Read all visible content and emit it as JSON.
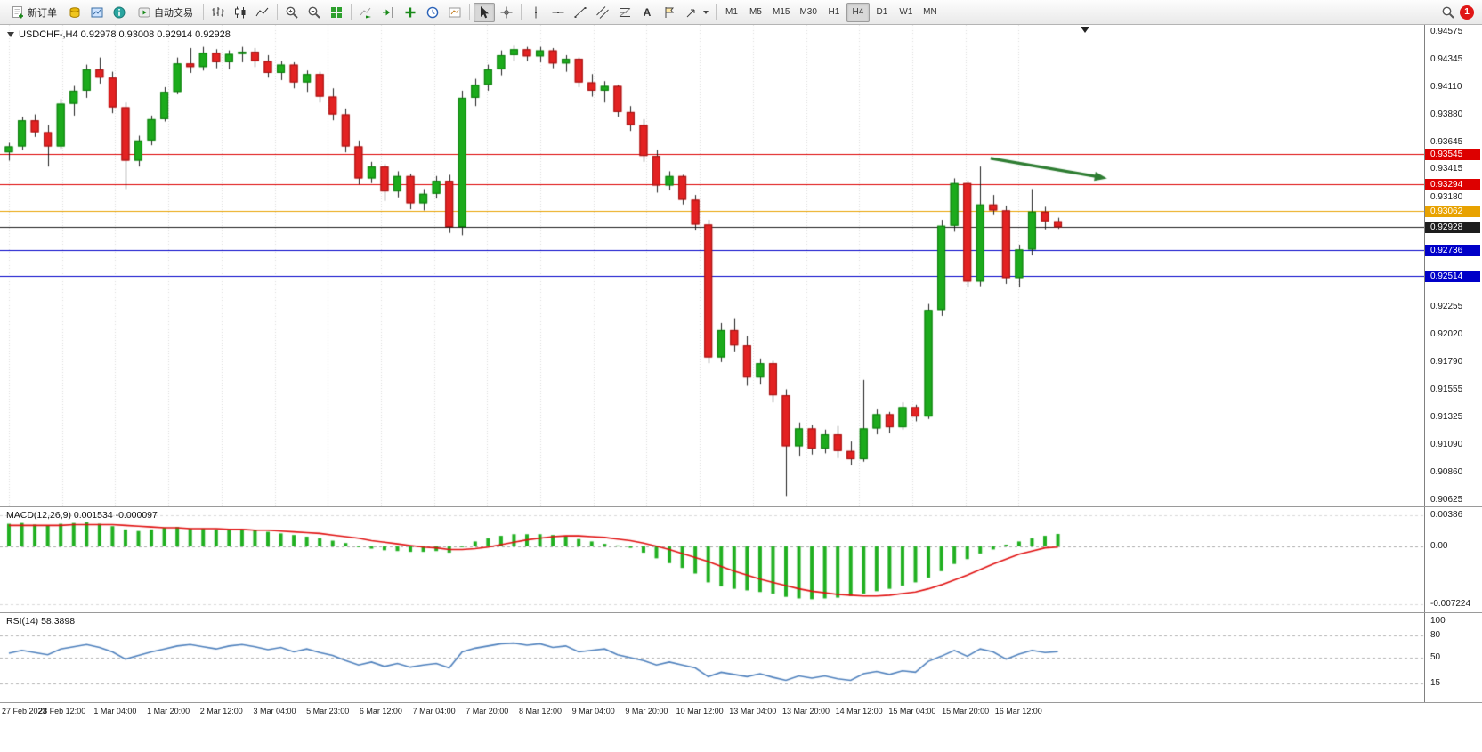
{
  "toolbar": {
    "new_order_label": "新订单",
    "algo_trading_label": "自动交易",
    "text_tool_label": "A",
    "timeframes": [
      "M1",
      "M5",
      "M15",
      "M30",
      "H1",
      "H4",
      "D1",
      "W1",
      "MN"
    ],
    "active_timeframe": "H4",
    "notification_count": "1"
  },
  "chart": {
    "symbol_header": "USDCHF-,H4 0.92978 0.93008 0.92914 0.92928"
  },
  "price_axis": {
    "labels": [
      "0.94575",
      "0.94345",
      "0.94110",
      "0.93880",
      "0.93645",
      "0.93415",
      "0.93180",
      "0.92255",
      "0.92020",
      "0.91790",
      "0.91555",
      "0.91325",
      "0.91090",
      "0.90860",
      "0.90625"
    ]
  },
  "macd_panel": {
    "title": "MACD(12,26,9) 0.001534 -0.000097",
    "axis_labels": [
      {
        "text": "0.00386",
        "value": 0.00386
      },
      {
        "text": "0.00",
        "value": 0
      },
      {
        "text": "-0.007224",
        "value": -0.007224
      }
    ]
  },
  "rsi_panel": {
    "title": "RSI(14) 58.3898",
    "axis_labels": [
      {
        "text": "100",
        "value": 100
      },
      {
        "text": "80",
        "value": 80
      },
      {
        "text": "50",
        "value": 50
      },
      {
        "text": "15",
        "value": 15
      }
    ]
  },
  "time_axis": {
    "labels": [
      "27 Feb 2023",
      "28 Feb 12:00",
      "1 Mar 04:00",
      "1 Mar 20:00",
      "2 Mar 12:00",
      "3 Mar 04:00",
      "5 Mar 23:00",
      "6 Mar 12:00",
      "7 Mar 04:00",
      "7 Mar 20:00",
      "8 Mar 12:00",
      "9 Mar 04:00",
      "9 Mar 20:00",
      "10 Mar 12:00",
      "13 Mar 04:00",
      "13 Mar 20:00",
      "14 Mar 12:00",
      "15 Mar 04:00",
      "15 Mar 20:00",
      "16 Mar 12:00"
    ]
  },
  "chart_data": {
    "type": "candlestick",
    "symbol": "USDCHF-",
    "timeframe": "H4",
    "current_ohlc": {
      "open": 0.92978,
      "high": 0.93008,
      "low": 0.92914,
      "close": 0.92928
    },
    "ylim": [
      0.90625,
      0.94575
    ],
    "candles": [
      [
        0.9356,
        0.9364,
        0.9349,
        0.9361
      ],
      [
        0.9361,
        0.9386,
        0.9358,
        0.9383
      ],
      [
        0.9383,
        0.9388,
        0.9369,
        0.9373
      ],
      [
        0.9373,
        0.9379,
        0.9344,
        0.9361
      ],
      [
        0.9361,
        0.9401,
        0.9359,
        0.9397
      ],
      [
        0.9397,
        0.9412,
        0.9387,
        0.9408
      ],
      [
        0.9408,
        0.943,
        0.9402,
        0.9426
      ],
      [
        0.9426,
        0.9436,
        0.9414,
        0.9419
      ],
      [
        0.9419,
        0.9424,
        0.9389,
        0.9394
      ],
      [
        0.9394,
        0.9398,
        0.9325,
        0.9349
      ],
      [
        0.9349,
        0.937,
        0.9344,
        0.9366
      ],
      [
        0.9366,
        0.9387,
        0.9362,
        0.9384
      ],
      [
        0.9384,
        0.9411,
        0.9382,
        0.9407
      ],
      [
        0.9407,
        0.9436,
        0.9405,
        0.9431
      ],
      [
        0.9431,
        0.9444,
        0.9423,
        0.9428
      ],
      [
        0.9428,
        0.9445,
        0.9425,
        0.944
      ],
      [
        0.944,
        0.9443,
        0.9427,
        0.9432
      ],
      [
        0.9432,
        0.9442,
        0.9426,
        0.9439
      ],
      [
        0.9439,
        0.9445,
        0.9432,
        0.9441
      ],
      [
        0.9441,
        0.9444,
        0.9428,
        0.9433
      ],
      [
        0.9433,
        0.9438,
        0.9419,
        0.9423
      ],
      [
        0.9423,
        0.9433,
        0.9417,
        0.943
      ],
      [
        0.943,
        0.9432,
        0.941,
        0.9415
      ],
      [
        0.9415,
        0.9425,
        0.9407,
        0.9422
      ],
      [
        0.9422,
        0.9424,
        0.9398,
        0.9403
      ],
      [
        0.9403,
        0.941,
        0.9383,
        0.9388
      ],
      [
        0.9388,
        0.9393,
        0.9356,
        0.9361
      ],
      [
        0.9361,
        0.9366,
        0.9329,
        0.9334
      ],
      [
        0.9334,
        0.9348,
        0.933,
        0.9344
      ],
      [
        0.9344,
        0.9346,
        0.9315,
        0.9323
      ],
      [
        0.9323,
        0.934,
        0.9318,
        0.9336
      ],
      [
        0.9336,
        0.9338,
        0.9308,
        0.9313
      ],
      [
        0.9313,
        0.9325,
        0.9307,
        0.9321
      ],
      [
        0.9321,
        0.9336,
        0.9317,
        0.9332
      ],
      [
        0.9332,
        0.9337,
        0.9288,
        0.9293
      ],
      [
        0.9293,
        0.9408,
        0.9286,
        0.9402
      ],
      [
        0.9402,
        0.9418,
        0.9395,
        0.9413
      ],
      [
        0.9413,
        0.943,
        0.9408,
        0.9426
      ],
      [
        0.9426,
        0.9442,
        0.9421,
        0.9438
      ],
      [
        0.9438,
        0.9446,
        0.9433,
        0.9443
      ],
      [
        0.9443,
        0.9445,
        0.9433,
        0.9437
      ],
      [
        0.9437,
        0.9445,
        0.9432,
        0.9442
      ],
      [
        0.9442,
        0.9444,
        0.9427,
        0.9431
      ],
      [
        0.9431,
        0.9438,
        0.9424,
        0.9435
      ],
      [
        0.9435,
        0.9436,
        0.9411,
        0.9415
      ],
      [
        0.9415,
        0.9422,
        0.9403,
        0.9408
      ],
      [
        0.9408,
        0.9416,
        0.9398,
        0.9412
      ],
      [
        0.9412,
        0.9413,
        0.9386,
        0.939
      ],
      [
        0.939,
        0.9395,
        0.9374,
        0.9379
      ],
      [
        0.9379,
        0.9384,
        0.9348,
        0.9353
      ],
      [
        0.9353,
        0.9358,
        0.9322,
        0.9328
      ],
      [
        0.9328,
        0.934,
        0.9324,
        0.9336
      ],
      [
        0.9336,
        0.9337,
        0.9312,
        0.9316
      ],
      [
        0.9316,
        0.932,
        0.929,
        0.9295
      ],
      [
        0.9295,
        0.9299,
        0.9178,
        0.9183
      ],
      [
        0.9183,
        0.9212,
        0.9179,
        0.9206
      ],
      [
        0.9206,
        0.9216,
        0.9188,
        0.9193
      ],
      [
        0.9193,
        0.9201,
        0.9159,
        0.9166
      ],
      [
        0.9166,
        0.9182,
        0.916,
        0.9178
      ],
      [
        0.9178,
        0.918,
        0.9145,
        0.9151
      ],
      [
        0.9151,
        0.9156,
        0.9066,
        0.9108
      ],
      [
        0.9108,
        0.9128,
        0.91,
        0.9123
      ],
      [
        0.9123,
        0.9126,
        0.9101,
        0.9106
      ],
      [
        0.9106,
        0.9122,
        0.9102,
        0.9118
      ],
      [
        0.9118,
        0.9125,
        0.9098,
        0.9104
      ],
      [
        0.9104,
        0.9112,
        0.9092,
        0.9097
      ],
      [
        0.9097,
        0.9164,
        0.9095,
        0.9123
      ],
      [
        0.9123,
        0.9139,
        0.9118,
        0.9135
      ],
      [
        0.9135,
        0.9137,
        0.9119,
        0.9124
      ],
      [
        0.9124,
        0.9145,
        0.9122,
        0.9141
      ],
      [
        0.9141,
        0.9143,
        0.9129,
        0.9133
      ],
      [
        0.9133,
        0.9228,
        0.9131,
        0.9223
      ],
      [
        0.9223,
        0.9299,
        0.9218,
        0.9294
      ],
      [
        0.9294,
        0.9334,
        0.9289,
        0.933
      ],
      [
        0.933,
        0.9332,
        0.9242,
        0.9247
      ],
      [
        0.9247,
        0.9344,
        0.9243,
        0.9312
      ],
      [
        0.9312,
        0.932,
        0.9303,
        0.9307
      ],
      [
        0.9307,
        0.9311,
        0.9245,
        0.925
      ],
      [
        0.925,
        0.9278,
        0.9242,
        0.9274
      ],
      [
        0.9274,
        0.9325,
        0.9269,
        0.9306
      ],
      [
        0.9306,
        0.931,
        0.9291,
        0.92978
      ],
      [
        0.92978,
        0.93008,
        0.92914,
        0.92928
      ]
    ],
    "bull_color": "#1cab1c",
    "bear_color": "#e32222",
    "levels": [
      {
        "price": 0.93545,
        "label": "0.93545",
        "color": "#dd0000"
      },
      {
        "price": 0.93294,
        "label": "0.93294",
        "color": "#dd0000"
      },
      {
        "price": 0.93062,
        "label": "0.93062",
        "color": "#e8a200"
      },
      {
        "price": 0.92928,
        "label": "0.92928",
        "color": "#1d1d1d"
      },
      {
        "price": 0.92736,
        "label": "0.92736",
        "color": "#0000c8"
      },
      {
        "price": 0.92514,
        "label": "0.92514",
        "color": "#0000c8"
      }
    ],
    "annotation_arrow": {
      "x1_candle": 75.8,
      "y1_price": 0.9351,
      "x2_candle": 84.8,
      "y2_price": 0.9334,
      "color": "#2e7d32"
    },
    "macd": {
      "ylim": [
        -0.007224,
        0.00386
      ],
      "histogram_color": "#21b021",
      "signal_color": "#e01010",
      "histogram": [
        0.0028,
        0.0029,
        0.0027,
        0.0026,
        0.0028,
        0.0029,
        0.003,
        0.0028,
        0.0025,
        0.0021,
        0.0019,
        0.0021,
        0.0023,
        0.0024,
        0.0022,
        0.0022,
        0.0021,
        0.0021,
        0.0021,
        0.002,
        0.0018,
        0.0016,
        0.0014,
        0.0012,
        0.001,
        0.0007,
        0.0004,
        0.0,
        -0.0003,
        -0.0005,
        -0.0006,
        -0.0007,
        -0.0007,
        -0.0006,
        -0.0008,
        0.0,
        0.0006,
        0.001,
        0.0013,
        0.0015,
        0.0015,
        0.0015,
        0.0014,
        0.0012,
        0.0009,
        0.0006,
        0.0003,
        0.0001,
        -0.0002,
        -0.0008,
        -0.0015,
        -0.0021,
        -0.0027,
        -0.0034,
        -0.0045,
        -0.005,
        -0.0053,
        -0.0055,
        -0.0057,
        -0.0059,
        -0.0063,
        -0.0065,
        -0.0066,
        -0.0065,
        -0.0064,
        -0.0062,
        -0.0059,
        -0.0056,
        -0.0053,
        -0.0049,
        -0.0045,
        -0.0039,
        -0.0031,
        -0.0022,
        -0.0016,
        -0.0009,
        -0.0004,
        0.0002,
        0.0006,
        0.001,
        0.0013,
        0.001534
      ],
      "signal": [
        0.0026,
        0.0026,
        0.0026,
        0.0026,
        0.0026,
        0.0027,
        0.0027,
        0.0027,
        0.0027,
        0.0026,
        0.0025,
        0.0024,
        0.0023,
        0.0023,
        0.0022,
        0.0022,
        0.0022,
        0.0021,
        0.0021,
        0.002,
        0.002,
        0.0019,
        0.0018,
        0.0017,
        0.0016,
        0.0014,
        0.0012,
        0.001,
        0.0007,
        0.0005,
        0.0003,
        0.0001,
        -0.0001,
        -0.0002,
        -0.0004,
        -0.0004,
        -0.0003,
        -0.0001,
        0.0002,
        0.0005,
        0.0008,
        0.001,
        0.0012,
        0.0013,
        0.0013,
        0.0012,
        0.0011,
        0.0009,
        0.0007,
        0.0004,
        0.0,
        -0.0004,
        -0.0009,
        -0.0014,
        -0.0019,
        -0.0025,
        -0.0031,
        -0.0036,
        -0.0041,
        -0.0045,
        -0.0049,
        -0.0053,
        -0.0056,
        -0.0058,
        -0.006,
        -0.0061,
        -0.0062,
        -0.0062,
        -0.0061,
        -0.0059,
        -0.0057,
        -0.0053,
        -0.0048,
        -0.0042,
        -0.0036,
        -0.0029,
        -0.0022,
        -0.0016,
        -0.001,
        -0.0006,
        -0.0002,
        -9.7e-05
      ]
    },
    "rsi": {
      "line_color": "#4f81bd",
      "levels": [
        80,
        50,
        15
      ],
      "values": [
        56,
        60,
        57,
        54,
        62,
        65,
        68,
        64,
        58,
        48,
        53,
        58,
        62,
        66,
        68,
        65,
        62,
        66,
        68,
        65,
        61,
        64,
        58,
        62,
        57,
        53,
        46,
        40,
        44,
        38,
        42,
        37,
        40,
        42,
        36,
        58,
        63,
        66,
        69,
        70,
        67,
        69,
        64,
        66,
        58,
        60,
        62,
        54,
        50,
        46,
        40,
        44,
        40,
        36,
        24,
        30,
        27,
        24,
        28,
        23,
        19,
        25,
        22,
        25,
        21,
        19,
        28,
        31,
        27,
        32,
        30,
        45,
        52,
        60,
        52,
        62,
        58,
        48,
        55,
        60,
        57,
        58.39
      ]
    }
  }
}
